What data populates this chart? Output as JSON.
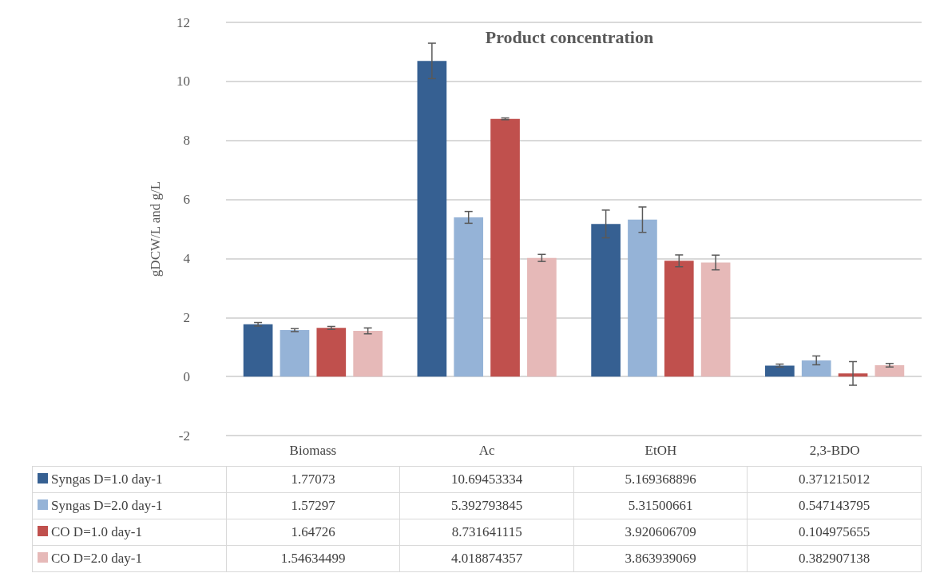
{
  "chart_data": {
    "type": "bar",
    "title": "Product concentration",
    "ylabel": "gDCW/L and g/L",
    "categories": [
      "Biomass",
      "Ac",
      "EtOH",
      "2,3-BDO"
    ],
    "series": [
      {
        "name": "Syngas D=1.0 day-1",
        "color": "#366092",
        "values": [
          1.77073,
          10.69453334,
          5.169368896,
          0.371215012
        ],
        "errors": [
          0.06,
          0.6,
          0.47,
          0.05
        ]
      },
      {
        "name": "Syngas D=2.0 day-1",
        "color": "#95b3d7",
        "values": [
          1.57297,
          5.392793845,
          5.31500661,
          0.547143795
        ],
        "errors": [
          0.05,
          0.2,
          0.43,
          0.15
        ]
      },
      {
        "name": "CO D=1.0 day-1",
        "color": "#c0504d",
        "values": [
          1.64726,
          8.731641115,
          3.920606709,
          0.104975655
        ],
        "errors": [
          0.05,
          0.03,
          0.2,
          0.4
        ]
      },
      {
        "name": "CO D=2.0 day-1",
        "color": "#e6b9b8",
        "values": [
          1.54634499,
          4.018874357,
          3.863939069,
          0.382907138
        ],
        "errors": [
          0.1,
          0.12,
          0.25,
          0.06
        ]
      }
    ],
    "ylim": [
      -2,
      12
    ],
    "yticks": [
      -2,
      0,
      2,
      4,
      6,
      8,
      10,
      12
    ],
    "grid": "y",
    "legend": "bottom",
    "data_labels": true
  }
}
